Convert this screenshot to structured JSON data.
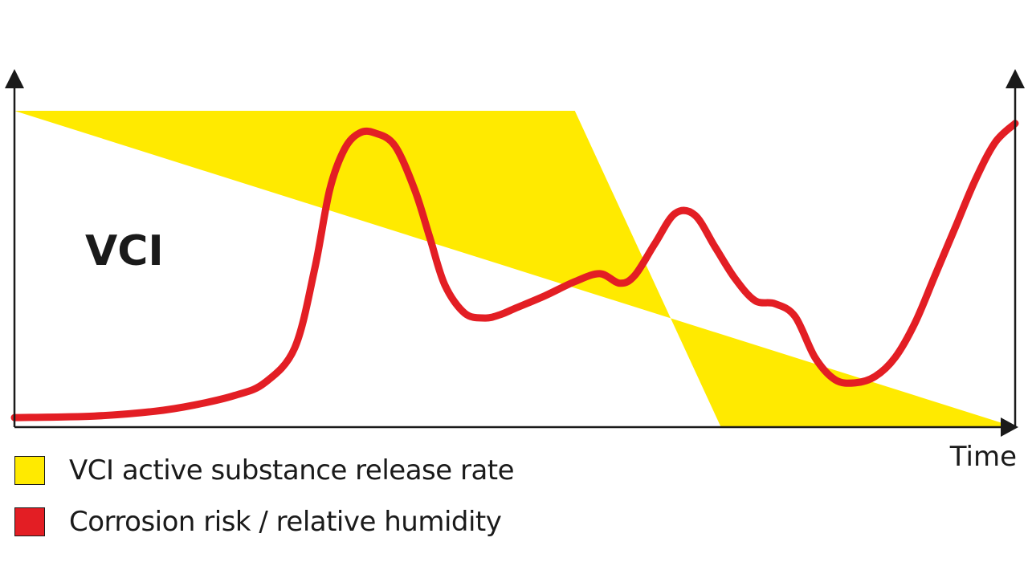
{
  "chart_data": {
    "type": "area",
    "title": "",
    "xlabel": "Time",
    "ylabel": "",
    "annotation": "VCI",
    "legend_position": "bottom-left",
    "grid": false,
    "x_range": [
      0,
      100
    ],
    "y_range": [
      0,
      100
    ],
    "series": [
      {
        "name": "VCI active substance release rate",
        "kind": "area",
        "color": "#FFEA00",
        "x": [
          0,
          56,
          70.6,
          100
        ],
        "y": [
          100,
          100,
          0,
          0
        ]
      },
      {
        "name": "Corrosion risk / relative humidity",
        "kind": "line",
        "color": "#E31E24",
        "x": [
          0,
          8,
          14,
          18,
          22,
          25,
          28,
          30,
          31.5,
          33,
          34.5,
          36,
          38,
          40,
          41.5,
          43,
          45,
          47,
          48.5,
          50,
          53,
          56,
          58.5,
          60.5,
          62,
          64,
          66,
          68,
          70,
          72,
          74,
          76,
          78,
          80,
          82,
          84,
          86,
          88,
          90,
          92,
          94,
          96,
          98,
          100
        ],
        "y": [
          3,
          3.5,
          5,
          7,
          10,
          14,
          25,
          50,
          75,
          88,
          93,
          93,
          89,
          75,
          60,
          45,
          36,
          34.5,
          35.5,
          37.5,
          41.5,
          46,
          48.5,
          45.5,
          48,
          58,
          67.5,
          67,
          57,
          47,
          40,
          39,
          35,
          22,
          15,
          14,
          16,
          22,
          33,
          48,
          63,
          78,
          90,
          96
        ]
      }
    ]
  }
}
